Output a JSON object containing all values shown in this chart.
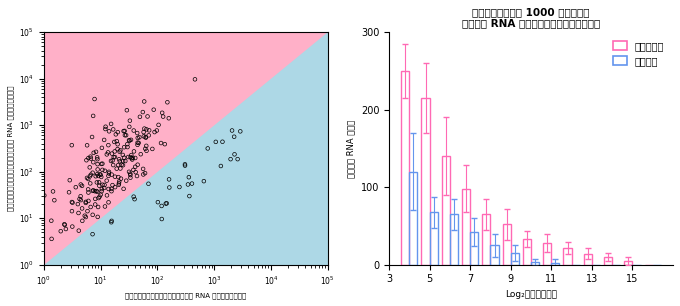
{
  "scatter_xlim": [
    1,
    100000
  ],
  "scatter_ylim": [
    1,
    100000
  ],
  "scatter_xlabel": "従来技術により検出されたマイクロ RNA の規格化蛍光強度",
  "scatter_ylabel": "ナノワイヤにより検出されたマイクロ RNA の規格化蛍光強度",
  "scatter_bg_pink": "#FFB0C8",
  "scatter_bg_blue": "#ADD8E6",
  "bar_title_line1": "ナノワイヤにより 1000 種類以上の",
  "bar_title_line2": "マイクロ RNA が尿中に存在することを確認",
  "bar_xlabel": "Log₂（蛍光強度）",
  "bar_ylabel": "マイクロ RNA 種頻数",
  "bar_ylim": [
    0,
    300
  ],
  "bar_yticks": [
    0,
    100,
    200,
    300
  ],
  "bar_positions": [
    4,
    5,
    6,
    7,
    8,
    9,
    10,
    11,
    12,
    13,
    14,
    15,
    16
  ],
  "bar_xticks": [
    3,
    5,
    7,
    9,
    11,
    13,
    15
  ],
  "nanowire_values": [
    250,
    215,
    140,
    98,
    65,
    52,
    33,
    28,
    22,
    14,
    10,
    5,
    0
  ],
  "nanowire_errors": [
    35,
    45,
    50,
    30,
    20,
    20,
    10,
    12,
    8,
    7,
    5,
    5,
    0
  ],
  "conventional_values": [
    120,
    68,
    65,
    42,
    25,
    15,
    3,
    2,
    0,
    0,
    0,
    0,
    0
  ],
  "conventional_errors": [
    50,
    20,
    20,
    18,
    15,
    10,
    5,
    5,
    0,
    0,
    0,
    0,
    0
  ],
  "nanowire_color": "#FF69B4",
  "conventional_color": "#6495ED",
  "legend_nanowire": "ナノワイヤ",
  "legend_conventional": "従来技術",
  "bar_width": 0.4,
  "scatter_point_seed": 12345
}
